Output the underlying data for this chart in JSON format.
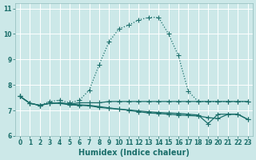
{
  "xlabel": "Humidex (Indice chaleur)",
  "bg_color": "#cce8e8",
  "line_color": "#1a6e6a",
  "grid_color": "#b0d4d4",
  "xlim": [
    -0.5,
    23.5
  ],
  "ylim": [
    6.0,
    11.2
  ],
  "yticks": [
    6,
    7,
    8,
    9,
    10,
    11
  ],
  "xticks": [
    0,
    1,
    2,
    3,
    4,
    5,
    6,
    7,
    8,
    9,
    10,
    11,
    12,
    13,
    14,
    15,
    16,
    17,
    18,
    19,
    20,
    21,
    22,
    23
  ],
  "series": [
    {
      "x": [
        0,
        1,
        2,
        3,
        4,
        5,
        6,
        7,
        8,
        9,
        10,
        11,
        12,
        13,
        14,
        15,
        16,
        17,
        18,
        19,
        20,
        21,
        22,
        23
      ],
      "y": [
        7.55,
        7.28,
        7.2,
        7.35,
        7.4,
        7.3,
        7.4,
        7.8,
        8.8,
        9.7,
        10.2,
        10.35,
        10.55,
        10.65,
        10.65,
        10.0,
        9.15,
        7.75,
        7.35,
        7.35,
        7.35,
        7.35,
        7.35,
        7.35
      ],
      "marker": "+",
      "markersize": 4,
      "linewidth": 0.9,
      "linestyle": ":"
    },
    {
      "x": [
        0,
        1,
        2,
        3,
        4,
        5,
        6,
        7,
        8,
        9,
        10,
        11,
        12,
        13,
        14,
        15,
        16,
        17,
        18,
        19,
        20,
        21,
        22,
        23
      ],
      "y": [
        7.55,
        7.28,
        7.2,
        7.28,
        7.3,
        7.25,
        7.3,
        7.3,
        7.3,
        7.35,
        7.35,
        7.35,
        7.35,
        7.35,
        7.35,
        7.35,
        7.35,
        7.35,
        7.35,
        7.35,
        7.35,
        7.35,
        7.35,
        7.35
      ],
      "marker": "+",
      "markersize": 4,
      "linewidth": 0.9,
      "linestyle": "-"
    },
    {
      "x": [
        0,
        1,
        2,
        3,
        4,
        5,
        6,
        7,
        8,
        9,
        10,
        11,
        12,
        13,
        14,
        15,
        16,
        17,
        18,
        19,
        20,
        21,
        22,
        23
      ],
      "y": [
        7.55,
        7.28,
        7.2,
        7.28,
        7.3,
        7.25,
        7.22,
        7.2,
        7.15,
        7.1,
        7.05,
        7.0,
        6.95,
        6.9,
        6.88,
        6.85,
        6.82,
        6.8,
        6.78,
        6.72,
        6.68,
        6.85,
        6.85,
        6.65
      ],
      "marker": "+",
      "markersize": 4,
      "linewidth": 0.9,
      "linestyle": "-"
    },
    {
      "x": [
        0,
        1,
        2,
        3,
        4,
        5,
        6,
        7,
        8,
        9,
        10,
        11,
        12,
        13,
        14,
        15,
        16,
        17,
        18,
        19,
        20,
        21,
        22,
        23
      ],
      "y": [
        7.55,
        7.28,
        7.2,
        7.28,
        7.28,
        7.22,
        7.2,
        7.18,
        7.12,
        7.08,
        7.05,
        7.02,
        6.98,
        6.95,
        6.92,
        6.9,
        6.88,
        6.85,
        6.82,
        6.48,
        6.85,
        6.85,
        6.85,
        6.65
      ],
      "marker": "+",
      "markersize": 4,
      "linewidth": 0.9,
      "linestyle": "-"
    }
  ]
}
